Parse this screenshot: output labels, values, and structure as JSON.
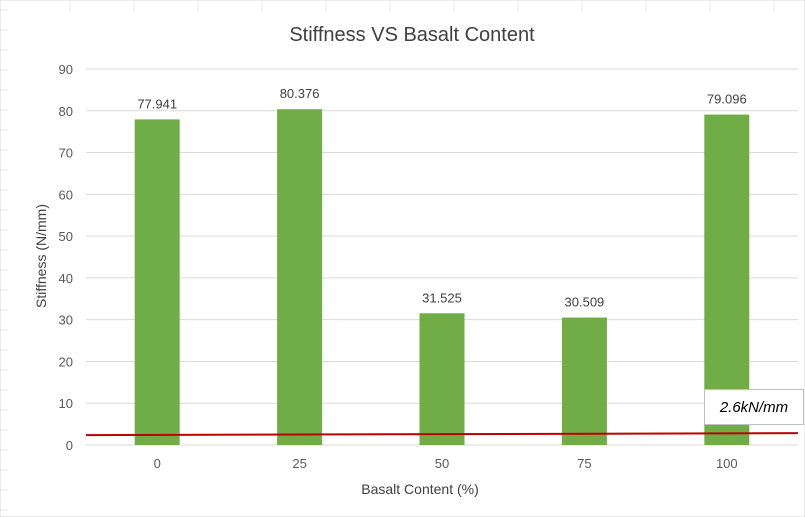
{
  "chart_data": {
    "type": "bar",
    "title": "Stiffness VS Basalt Content",
    "xlabel": "Basalt Content (%)",
    "ylabel": "Stiffness (N/mm)",
    "categories": [
      "0",
      "25",
      "50",
      "75",
      "100"
    ],
    "values": [
      77.941,
      80.376,
      31.525,
      30.509,
      79.096
    ],
    "data_labels": [
      "77.941",
      "80.376",
      "31.525",
      "30.509",
      "79.096"
    ],
    "ylim": [
      0,
      90
    ],
    "yticks": [
      0,
      10,
      20,
      30,
      40,
      50,
      60,
      70,
      80,
      90
    ],
    "grid": true,
    "legend": "none",
    "bar_color": "#70ad47",
    "reference_line": {
      "value": 2.6,
      "color": "#c00000"
    },
    "annotation": "2.6kN/mm"
  }
}
